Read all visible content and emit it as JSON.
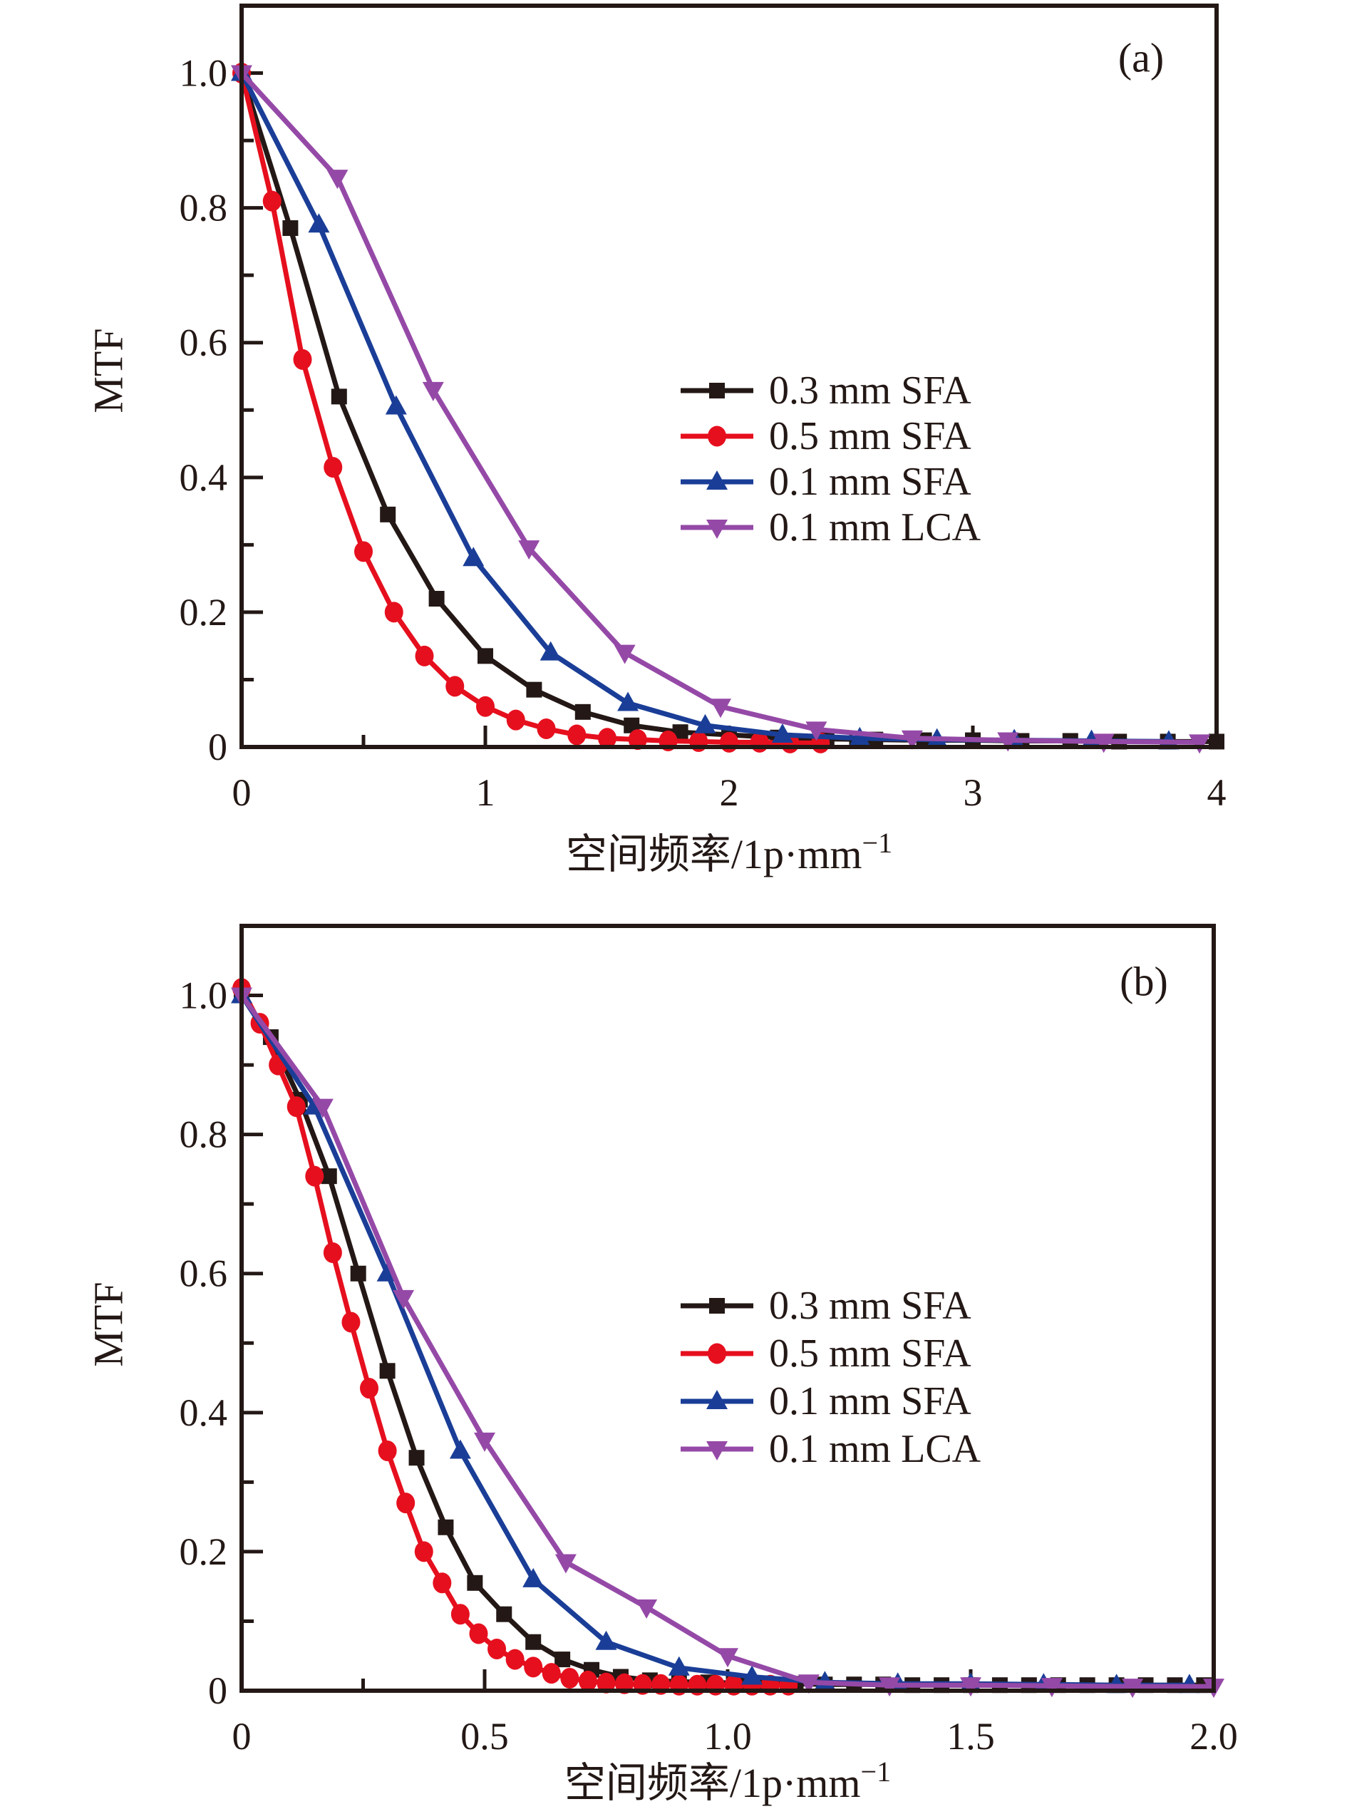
{
  "figure_title": "",
  "background_color": "#ffffff",
  "axis_color": "#231815",
  "chart_data": [
    {
      "id": "a",
      "type": "line",
      "panel_label": "(a)",
      "title": "",
      "xlabel": "空间频率/1p·mm",
      "xlabel_superscript": "−1",
      "ylabel": "MTF",
      "xlim": [
        0,
        4
      ],
      "ylim": [
        0,
        1.1
      ],
      "grid": false,
      "legend_position": "center-right",
      "x_major_ticks": [
        0,
        1,
        2,
        3,
        4
      ],
      "x_tick_labels": [
        "0",
        "1",
        "2",
        "3",
        "4"
      ],
      "x_minor_ticks": [
        0.5,
        1.5,
        2.5,
        3.5
      ],
      "y_major_ticks": [
        0,
        0.2,
        0.4,
        0.6,
        0.8,
        1.0
      ],
      "y_tick_labels": [
        "0",
        "0.2",
        "0.4",
        "0.6",
        "0.8",
        "1.0"
      ],
      "y_minor_ticks": [
        0.1,
        0.3,
        0.5,
        0.7,
        0.9
      ],
      "series": [
        {
          "name": "0.3 mm SFA",
          "color": "#231815",
          "marker": "square",
          "x": [
            0,
            0.2,
            0.4,
            0.6,
            0.8,
            1.0,
            1.2,
            1.4,
            1.6,
            1.8,
            2.0,
            2.2,
            2.4,
            2.6,
            2.8,
            3.0,
            3.2,
            3.4,
            3.6,
            3.8,
            4.0
          ],
          "y": [
            1.0,
            0.77,
            0.52,
            0.345,
            0.22,
            0.135,
            0.085,
            0.052,
            0.032,
            0.022,
            0.018,
            0.014,
            0.012,
            0.011,
            0.01,
            0.01,
            0.009,
            0.009,
            0.008,
            0.008,
            0.008
          ]
        },
        {
          "name": "0.5 mm SFA",
          "color": "#e60f1e",
          "marker": "circle",
          "x": [
            0,
            0.125,
            0.25,
            0.375,
            0.5,
            0.625,
            0.75,
            0.875,
            1.0,
            1.125,
            1.25,
            1.375,
            1.5,
            1.625,
            1.75,
            1.875,
            2.0,
            2.125,
            2.25,
            2.375
          ],
          "y": [
            1.0,
            0.81,
            0.575,
            0.415,
            0.29,
            0.2,
            0.135,
            0.09,
            0.06,
            0.04,
            0.027,
            0.018,
            0.013,
            0.011,
            0.009,
            0.008,
            0.007,
            0.007,
            0.006,
            0.006
          ]
        },
        {
          "name": "0.1 mm SFA",
          "color": "#1a3e97",
          "marker": "triangle-up",
          "x": [
            0,
            0.317,
            0.634,
            0.951,
            1.268,
            1.585,
            1.902,
            2.219,
            2.536,
            2.853,
            3.17,
            3.487,
            3.804
          ],
          "y": [
            1.0,
            0.775,
            0.505,
            0.28,
            0.14,
            0.065,
            0.032,
            0.018,
            0.013,
            0.011,
            0.01,
            0.009,
            0.008
          ]
        },
        {
          "name": "0.1 mm LCA",
          "color": "#9549a7",
          "marker": "triangle-down",
          "x": [
            0,
            0.393,
            0.786,
            1.179,
            1.572,
            1.965,
            2.358,
            2.751,
            3.144,
            3.537,
            3.93
          ],
          "y": [
            1.0,
            0.845,
            0.53,
            0.295,
            0.14,
            0.06,
            0.026,
            0.013,
            0.01,
            0.008,
            0.007
          ]
        }
      ]
    },
    {
      "id": "b",
      "type": "line",
      "panel_label": "(b)",
      "title": "",
      "xlabel": "空间频率/1p·mm",
      "xlabel_superscript": "−1",
      "ylabel": "MTF",
      "xlim": [
        0,
        2
      ],
      "ylim": [
        0,
        1.1
      ],
      "grid": false,
      "legend_position": "center-right",
      "x_major_ticks": [
        0,
        0.5,
        1.0,
        1.5,
        2.0
      ],
      "x_tick_labels": [
        "0",
        "0.5",
        "1.0",
        "1.5",
        "2.0"
      ],
      "x_minor_ticks": [
        0.25,
        0.75,
        1.25,
        1.75
      ],
      "y_major_ticks": [
        0,
        0.2,
        0.4,
        0.6,
        0.8,
        1.0
      ],
      "y_tick_labels": [
        "0",
        "0.2",
        "0.4",
        "0.6",
        "0.8",
        "1.0"
      ],
      "y_minor_ticks": [
        0.1,
        0.3,
        0.5,
        0.7,
        0.9
      ],
      "series": [
        {
          "name": "0.3 mm SFA",
          "color": "#231815",
          "marker": "square",
          "x": [
            0,
            0.06,
            0.12,
            0.18,
            0.24,
            0.3,
            0.36,
            0.42,
            0.48,
            0.54,
            0.6,
            0.66,
            0.72,
            0.78,
            0.84,
            0.9,
            0.96,
            1.02,
            1.08,
            1.14,
            1.2,
            1.26,
            1.32,
            1.38,
            1.44,
            1.5,
            1.56,
            1.62,
            1.68,
            1.74,
            1.8,
            1.86,
            1.92,
            1.98
          ],
          "y": [
            1.0,
            0.94,
            0.85,
            0.74,
            0.6,
            0.46,
            0.335,
            0.235,
            0.155,
            0.11,
            0.07,
            0.045,
            0.03,
            0.02,
            0.015,
            0.013,
            0.012,
            0.011,
            0.01,
            0.01,
            0.009,
            0.009,
            0.009,
            0.008,
            0.008,
            0.008,
            0.008,
            0.008,
            0.008,
            0.008,
            0.008,
            0.008,
            0.008,
            0.008
          ]
        },
        {
          "name": "0.5 mm SFA",
          "color": "#e60f1e",
          "marker": "circle",
          "x": [
            0,
            0.0375,
            0.075,
            0.1125,
            0.15,
            0.1875,
            0.225,
            0.2625,
            0.3,
            0.3375,
            0.375,
            0.4125,
            0.45,
            0.4875,
            0.525,
            0.5625,
            0.6,
            0.6375,
            0.675,
            0.7125,
            0.75,
            0.7875,
            0.825,
            0.8625,
            0.9,
            0.9375,
            0.975,
            1.0125,
            1.05,
            1.0875,
            1.125
          ],
          "y": [
            1.01,
            0.96,
            0.9,
            0.84,
            0.74,
            0.63,
            0.53,
            0.435,
            0.345,
            0.27,
            0.2,
            0.155,
            0.11,
            0.082,
            0.06,
            0.045,
            0.034,
            0.025,
            0.018,
            0.014,
            0.011,
            0.01,
            0.009,
            0.009,
            0.008,
            0.008,
            0.008,
            0.008,
            0.008,
            0.008,
            0.008
          ]
        },
        {
          "name": "0.1 mm SFA",
          "color": "#1a3e97",
          "marker": "triangle-up",
          "x": [
            0,
            0.15,
            0.3,
            0.45,
            0.6,
            0.75,
            0.9,
            1.05,
            1.2,
            1.35,
            1.5,
            1.65,
            1.8,
            1.95
          ],
          "y": [
            1.0,
            0.84,
            0.6,
            0.345,
            0.16,
            0.07,
            0.033,
            0.02,
            0.012,
            0.01,
            0.01,
            0.009,
            0.008,
            0.008
          ]
        },
        {
          "name": "0.1 mm LCA",
          "color": "#9549a7",
          "marker": "triangle-down",
          "x": [
            0,
            0.167,
            0.333,
            0.5,
            0.667,
            0.833,
            1.0,
            1.167,
            1.333,
            1.5,
            1.667,
            1.833,
            2.0
          ],
          "y": [
            1.0,
            0.84,
            0.565,
            0.36,
            0.185,
            0.12,
            0.05,
            0.012,
            0.008,
            0.008,
            0.007,
            0.006,
            0.006
          ]
        }
      ]
    }
  ]
}
